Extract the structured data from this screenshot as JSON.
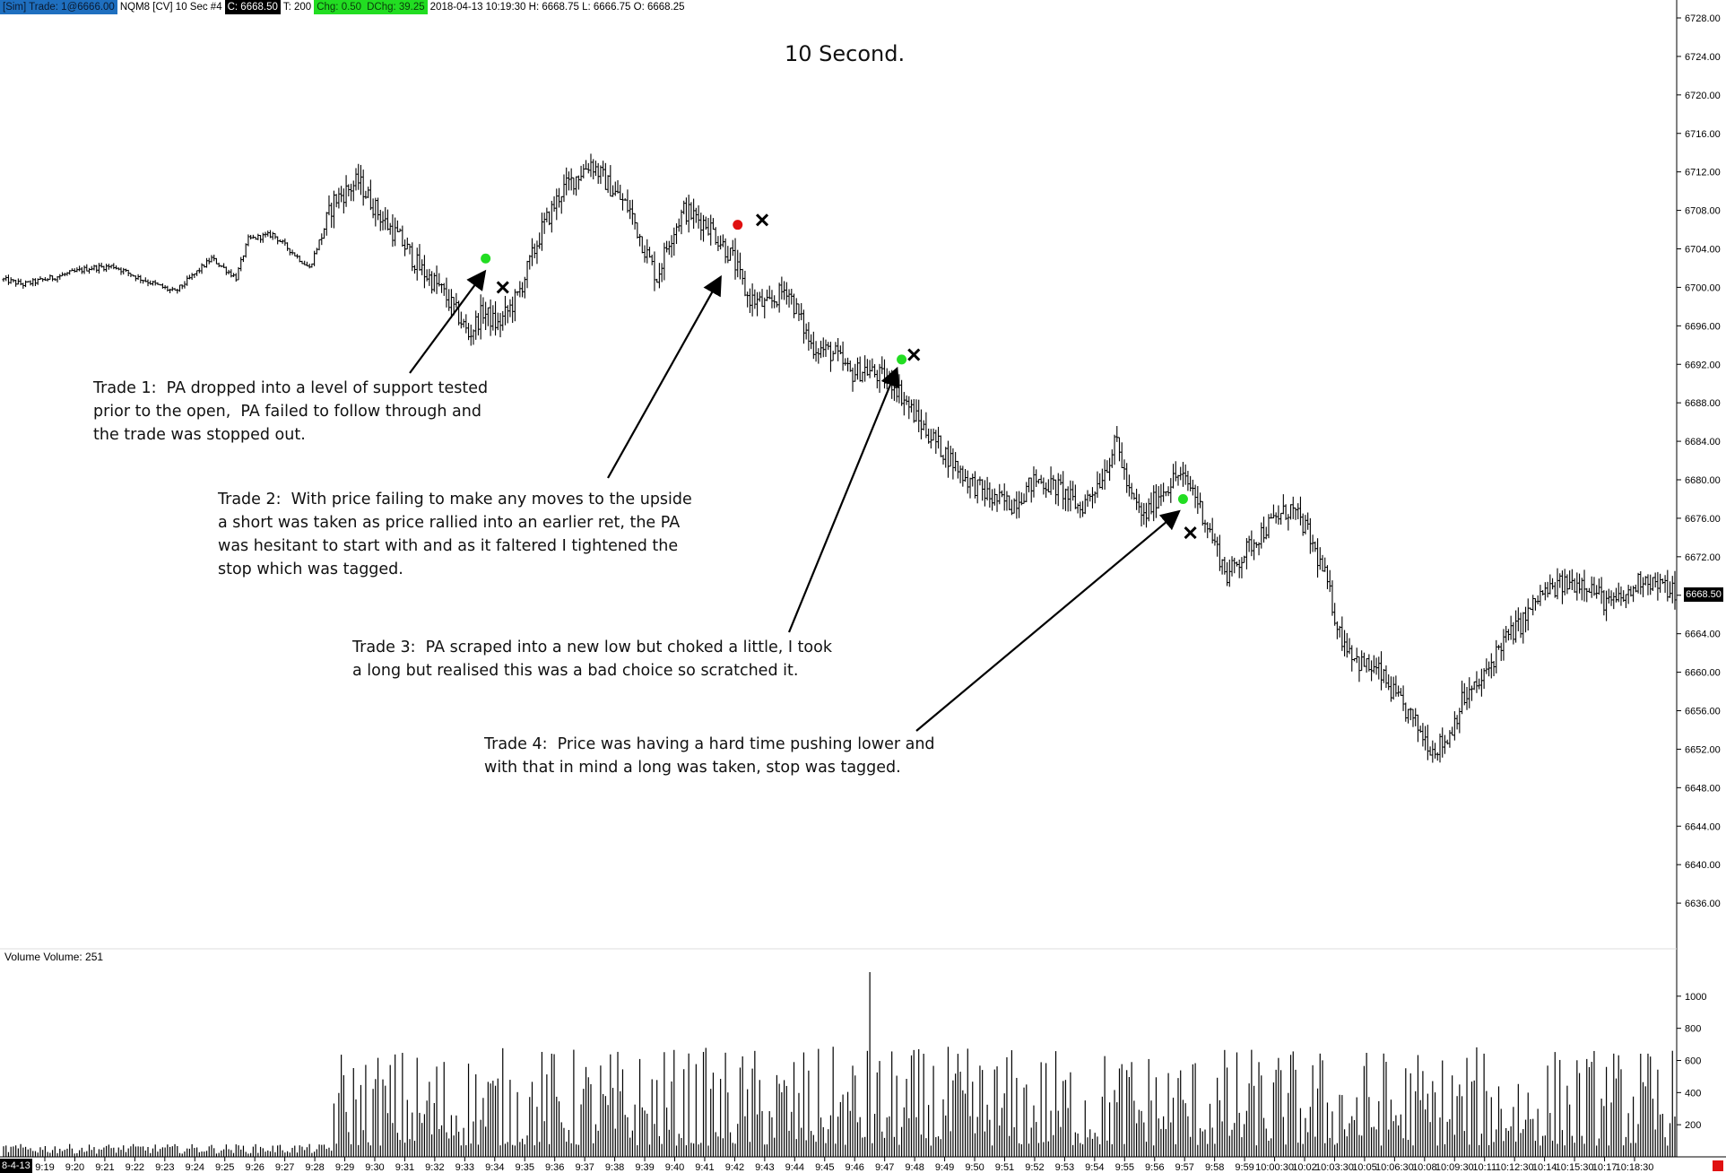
{
  "header": {
    "account": "[Sim]  Trade: 1@6666.00",
    "instrument": "NQM8 [CV]  10 Sec    #4",
    "close": "C: 6668.50",
    "ticks": "T: 200",
    "chg": "Chg: 0.50",
    "dchg": "DChg: 39.25",
    "bar_info": "2018-04-13 10:19:30 H: 6668.75 L: 6666.75 O: 6668.25"
  },
  "title": "10 Second.",
  "annotations": [
    "Trade 1:  PA dropped into a level of support tested\nprior to the open,  PA failed to follow through and\nthe trade was stopped out.",
    "Trade 2:  With price failing to make any moves to the upside\na short was taken as price rallied into an earlier ret, the PA\nwas hesitant to start with and as it faltered I tightened the\nstop which was tagged.",
    "Trade 3:  PA scraped into a new low but choked a little, I took\na long but realised this was a bad choice so scratched it.",
    "Trade 4:  Price was having a hard time pushing lower and\nwith that in mind a long was taken, stop was tagged."
  ],
  "volume_label": "Volume  Volume: 251",
  "last_price_label": "6668.50",
  "date_tag": "8-4-13",
  "colors": {
    "entry_long": "#22dd22",
    "entry_short": "#e01010",
    "exit": "#000000",
    "bars": "#000000"
  },
  "chart_data": [
    {
      "type": "ohlc",
      "ylim": [
        6632,
        6728
      ],
      "y_ticks": [
        "6728.00",
        "6724.00",
        "6720.00",
        "6716.00",
        "6712.00",
        "6708.00",
        "6704.00",
        "6700.00",
        "6696.00",
        "6692.00",
        "6688.00",
        "6684.00",
        "6680.00",
        "6676.00",
        "6672.00",
        "6668.00",
        "6664.00",
        "6660.00",
        "6656.00",
        "6652.00",
        "6648.00",
        "6644.00",
        "6640.00",
        "6636.00"
      ],
      "x_ticks": [
        "9:19",
        "9:20",
        "9:21",
        "9:22",
        "9:23",
        "9:24",
        "9:25",
        "9:26",
        "9:27",
        "9:28",
        "9:29",
        "9:30",
        "9:31",
        "9:32",
        "9:33",
        "9:34",
        "9:35",
        "9:36",
        "9:37",
        "9:38",
        "9:39",
        "9:40",
        "9:41",
        "9:42",
        "9:43",
        "9:44",
        "9:45",
        "9:46",
        "9:47",
        "9:48",
        "9:49",
        "9:50",
        "9:51",
        "9:52",
        "9:53",
        "9:54",
        "9:55",
        "9:56",
        "9:57",
        "9:58",
        "9:59",
        "10:00:30",
        "10:02",
        "10:03:30",
        "10:05",
        "10:06:30",
        "10:08",
        "10:09:30",
        "10:11",
        "10:12:30",
        "10:14",
        "10:15:30",
        "10:17",
        "10:18:30"
      ],
      "price_path": [
        [
          0,
          6700.8
        ],
        [
          8,
          6700.3
        ],
        [
          20,
          6701.0
        ],
        [
          35,
          6702.0
        ],
        [
          45,
          6702.2
        ],
        [
          55,
          6701.0
        ],
        [
          70,
          6699.5
        ],
        [
          85,
          6703.0
        ],
        [
          95,
          6701.0
        ],
        [
          100,
          6705.0
        ],
        [
          110,
          6705.5
        ],
        [
          125,
          6702.0
        ],
        [
          135,
          6709.0
        ],
        [
          145,
          6711.0
        ],
        [
          155,
          6707.0
        ],
        [
          162,
          6705.0
        ],
        [
          170,
          6702.0
        ],
        [
          178,
          6700.0
        ],
        [
          186,
          6697.0
        ],
        [
          190,
          6695.0
        ],
        [
          196,
          6697.5
        ],
        [
          202,
          6696.0
        ],
        [
          210,
          6699.0
        ],
        [
          220,
          6706.0
        ],
        [
          228,
          6710.0
        ],
        [
          240,
          6713.0
        ],
        [
          246,
          6711.0
        ],
        [
          256,
          6708.0
        ],
        [
          262,
          6704.0
        ],
        [
          267,
          6701.0
        ],
        [
          272,
          6705.0
        ],
        [
          278,
          6708.0
        ],
        [
          288,
          6706.5
        ],
        [
          298,
          6703.0
        ],
        [
          304,
          6699.0
        ],
        [
          312,
          6698.0
        ],
        [
          320,
          6700.0
        ],
        [
          330,
          6694.0
        ],
        [
          340,
          6693.0
        ],
        [
          346,
          6691.0
        ],
        [
          352,
          6691.5
        ],
        [
          364,
          6690.0
        ],
        [
          374,
          6686.0
        ],
        [
          384,
          6683.0
        ],
        [
          394,
          6680.0
        ],
        [
          404,
          6678.0
        ],
        [
          412,
          6677.5
        ],
        [
          422,
          6680.0
        ],
        [
          432,
          6679.0
        ],
        [
          440,
          6677.0
        ],
        [
          448,
          6680.0
        ],
        [
          455,
          6684.0
        ],
        [
          460,
          6678.5
        ],
        [
          466,
          6676.0
        ],
        [
          472,
          6678.5
        ],
        [
          480,
          6680.5
        ],
        [
          486,
          6679.0
        ],
        [
          494,
          6674.0
        ],
        [
          500,
          6670.0
        ],
        [
          506,
          6672.0
        ],
        [
          512,
          6674.0
        ],
        [
          520,
          6676.0
        ],
        [
          526,
          6677.0
        ],
        [
          532,
          6675.0
        ],
        [
          540,
          6670.0
        ],
        [
          546,
          6664.0
        ],
        [
          554,
          6661.0
        ],
        [
          562,
          6660.0
        ],
        [
          570,
          6657.0
        ],
        [
          576,
          6655.0
        ],
        [
          584,
          6652.0
        ],
        [
          590,
          6653.0
        ],
        [
          596,
          6657.0
        ],
        [
          604,
          6659.0
        ],
        [
          612,
          6663.0
        ],
        [
          620,
          6665.0
        ],
        [
          628,
          6668.0
        ],
        [
          636,
          6669.0
        ],
        [
          646,
          6669.5
        ],
        [
          656,
          6667.0
        ],
        [
          664,
          6668.0
        ],
        [
          670,
          6670.0
        ],
        [
          676,
          6669.0
        ],
        [
          682,
          6668.5
        ]
      ],
      "volume": {
        "ylim": [
          0,
          1200
        ],
        "y_ticks": [
          "1000",
          "800",
          "600",
          "400",
          "200"
        ],
        "current": 251
      },
      "trades": [
        {
          "label": "Trade 1",
          "entry": {
            "bar": 197,
            "price": 6703.0,
            "side": "long"
          },
          "exit": {
            "bar": 204,
            "price": 6700.0
          }
        },
        {
          "label": "Trade 2",
          "entry": {
            "bar": 300,
            "price": 6706.5,
            "side": "short"
          },
          "exit": {
            "bar": 310,
            "price": 6707.0
          }
        },
        {
          "label": "Trade 3",
          "entry": {
            "bar": 367,
            "price": 6692.5,
            "side": "long"
          },
          "exit": {
            "bar": 372,
            "price": 6693.0
          }
        },
        {
          "label": "Trade 4",
          "entry": {
            "bar": 482,
            "price": 6678.0,
            "side": "long"
          },
          "exit": {
            "bar": 485,
            "price": 6674.5
          }
        }
      ]
    }
  ]
}
